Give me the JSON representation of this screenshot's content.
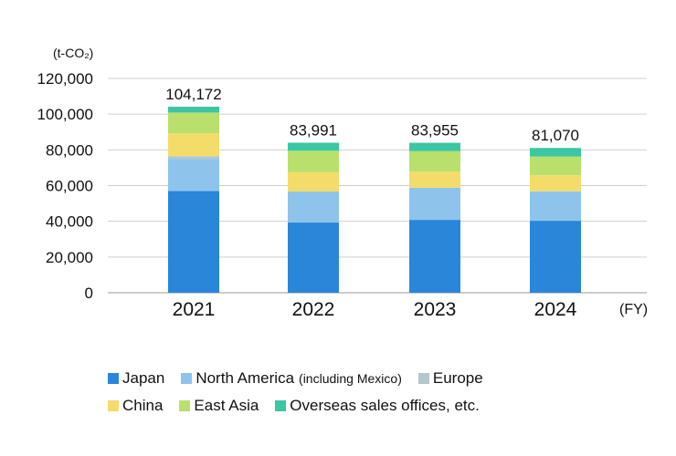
{
  "chart_data": {
    "type": "bar",
    "stacked": true,
    "unit": "(t-CO₂)",
    "x_unit": "(FY)",
    "categories": [
      "2021",
      "2022",
      "2023",
      "2024"
    ],
    "totals": [
      "104,172",
      "83,991",
      "83,955",
      "81,070"
    ],
    "ylim": [
      0,
      120000
    ],
    "yticks": [
      0,
      20000,
      40000,
      60000,
      80000,
      100000,
      120000
    ],
    "ytick_labels": [
      "0",
      "20,000",
      "40,000",
      "60,000",
      "80,000",
      "100,000",
      "120,000"
    ],
    "grid": true,
    "legend_position": "bottom",
    "series": [
      {
        "name": "Japan",
        "color": "#2a86d9",
        "values": [
          57000,
          39300,
          40800,
          40300
        ]
      },
      {
        "name": "North America",
        "name_note": "(including Mexico)",
        "color": "#8ec4ec",
        "values": [
          18000,
          17400,
          18000,
          16500
        ]
      },
      {
        "name": "Europe",
        "color": "#b3c7cc",
        "values": [
          1500,
          0,
          0,
          0
        ]
      },
      {
        "name": "China",
        "color": "#f4dc6a",
        "values": [
          12700,
          10800,
          9000,
          9000
        ]
      },
      {
        "name": "East Asia",
        "color": "#b9e06c",
        "values": [
          11700,
          12000,
          11500,
          10500
        ]
      },
      {
        "name": "Overseas sales offices, etc.",
        "color": "#3cc6a3",
        "values": [
          3272,
          4491,
          4655,
          4770
        ]
      }
    ]
  }
}
